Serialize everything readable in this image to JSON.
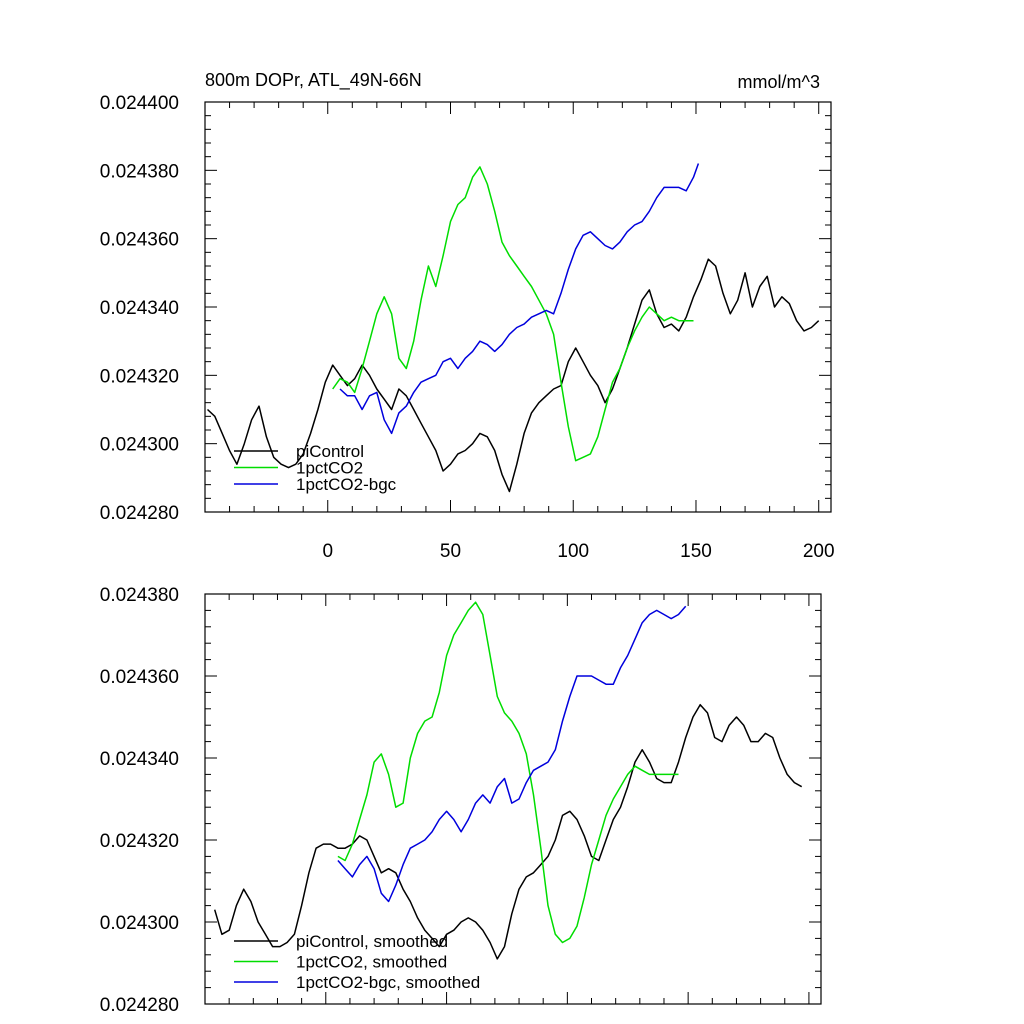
{
  "header": {
    "title": "800m DOPr, ATL_49N-66N",
    "units": "mmol/m^3"
  },
  "colors": {
    "piControl": "#000000",
    "1pctCO2": "#00dd00",
    "1pctCO2-bgc": "#0000dd"
  },
  "chart_data": [
    {
      "type": "line",
      "title": "800m DOPr, ATL_49N-66N",
      "units_label": "mmol/m^3",
      "xlim": [
        -50,
        205
      ],
      "ylim": [
        0.02428,
        0.0244
      ],
      "x_ticks": [
        0,
        50,
        100,
        150,
        200
      ],
      "x_tick_labels": [
        "0",
        "50",
        "100",
        "150",
        "200"
      ],
      "y_ticks": [
        0.02428,
        0.0243,
        0.02432,
        0.02434,
        0.02436,
        0.02438,
        0.0244
      ],
      "y_tick_labels": [
        "0.024280",
        "0.024300",
        "0.024320",
        "0.024340",
        "0.024360",
        "0.024380",
        "0.024400"
      ],
      "legend": {
        "placement": "bottom-left",
        "labels": [
          "piControl",
          "1pctCO2",
          "1pctCO2-bgc"
        ]
      },
      "series": [
        {
          "name": "piControl",
          "color": "#000000",
          "x": [
            -49,
            -46,
            -43,
            -40,
            -37,
            -34,
            -31,
            -28,
            -25,
            -22,
            -19,
            -16,
            -13,
            -10,
            -7,
            -4,
            -1,
            2,
            5,
            8,
            11,
            14,
            17,
            20,
            23,
            26,
            29,
            32,
            35,
            38,
            41,
            44,
            47,
            50,
            53,
            56,
            59,
            62,
            65,
            68,
            71,
            74,
            77,
            80,
            83,
            86,
            89,
            92,
            95,
            98,
            101,
            104,
            107,
            110,
            113,
            116,
            119,
            122,
            125,
            128,
            131,
            134,
            137,
            140,
            143,
            146,
            149,
            152,
            155,
            158,
            161,
            164,
            167,
            170,
            173,
            176,
            179,
            182,
            185,
            188,
            191,
            194,
            197,
            200
          ],
          "y": [
            0.02431,
            0.024308,
            0.024303,
            0.024298,
            0.024294,
            0.0243,
            0.024307,
            0.024311,
            0.024302,
            0.024296,
            0.024294,
            0.024293,
            0.024294,
            0.024297,
            0.024303,
            0.02431,
            0.024318,
            0.024323,
            0.02432,
            0.024317,
            0.024319,
            0.024323,
            0.02432,
            0.024316,
            0.024313,
            0.02431,
            0.024316,
            0.024314,
            0.02431,
            0.024306,
            0.024302,
            0.024298,
            0.024292,
            0.024294,
            0.024297,
            0.024298,
            0.0243,
            0.024303,
            0.024302,
            0.024298,
            0.024291,
            0.024286,
            0.024294,
            0.024303,
            0.024309,
            0.024312,
            0.024314,
            0.024316,
            0.024317,
            0.024324,
            0.024328,
            0.024324,
            0.02432,
            0.024317,
            0.024312,
            0.024316,
            0.024322,
            0.024328,
            0.024335,
            0.024342,
            0.024345,
            0.024338,
            0.024334,
            0.024335,
            0.024333,
            0.024337,
            0.024343,
            0.024348,
            0.024354,
            0.024352,
            0.024344,
            0.024338,
            0.024342,
            0.02435,
            0.02434,
            0.024346,
            0.024349,
            0.02434,
            0.024343,
            0.024341,
            0.024336,
            0.024333,
            0.024334,
            0.024336
          ]
        },
        {
          "name": "1pctCO2",
          "color": "#00dd00",
          "x": [
            2,
            5,
            8,
            11,
            14,
            17,
            20,
            23,
            26,
            29,
            32,
            35,
            38,
            41,
            44,
            47,
            50,
            53,
            56,
            59,
            62,
            65,
            68,
            71,
            74,
            77,
            80,
            83,
            86,
            89,
            92,
            95,
            98,
            101,
            104,
            107,
            110,
            113,
            116,
            119,
            122,
            125,
            128,
            131,
            134,
            137,
            140,
            143,
            146,
            149
          ],
          "y": [
            0.024316,
            0.024319,
            0.024318,
            0.024315,
            0.024322,
            0.02433,
            0.024338,
            0.024343,
            0.024338,
            0.024325,
            0.024322,
            0.02433,
            0.024342,
            0.024352,
            0.024346,
            0.024355,
            0.024365,
            0.02437,
            0.024372,
            0.024378,
            0.024381,
            0.024376,
            0.024368,
            0.024359,
            0.024355,
            0.024352,
            0.024349,
            0.024346,
            0.024342,
            0.024338,
            0.024332,
            0.024318,
            0.024305,
            0.024295,
            0.024296,
            0.024297,
            0.024302,
            0.02431,
            0.024318,
            0.024322,
            0.024328,
            0.024333,
            0.024337,
            0.02434,
            0.024338,
            0.024336,
            0.024337,
            0.024336,
            0.024336,
            0.024336
          ]
        },
        {
          "name": "1pctCO2-bgc",
          "color": "#0000dd",
          "x": [
            5,
            8,
            11,
            14,
            17,
            20,
            23,
            26,
            29,
            32,
            35,
            38,
            41,
            44,
            47,
            50,
            53,
            56,
            59,
            62,
            65,
            68,
            71,
            74,
            77,
            80,
            83,
            86,
            89,
            92,
            95,
            98,
            101,
            104,
            107,
            110,
            113,
            116,
            119,
            122,
            125,
            128,
            131,
            134,
            137,
            140,
            143,
            146,
            149,
            151
          ],
          "y": [
            0.024316,
            0.024314,
            0.024314,
            0.02431,
            0.024314,
            0.024315,
            0.024307,
            0.024303,
            0.024309,
            0.024311,
            0.024315,
            0.024318,
            0.024319,
            0.02432,
            0.024324,
            0.024325,
            0.024322,
            0.024325,
            0.024327,
            0.02433,
            0.024329,
            0.024327,
            0.024329,
            0.024332,
            0.024334,
            0.024335,
            0.024337,
            0.024338,
            0.024339,
            0.024338,
            0.024344,
            0.024351,
            0.024357,
            0.024361,
            0.024362,
            0.02436,
            0.024358,
            0.024357,
            0.024359,
            0.024362,
            0.024364,
            0.024365,
            0.024368,
            0.024372,
            0.024375,
            0.024375,
            0.024375,
            0.024374,
            0.024378,
            0.024382
          ]
        }
      ]
    },
    {
      "type": "line",
      "title": "",
      "xlim": [
        -50,
        205
      ],
      "ylim": [
        0.02428,
        0.02438
      ],
      "x_ticks": [
        0,
        50,
        100,
        150,
        200
      ],
      "y_ticks": [
        0.02428,
        0.0243,
        0.02432,
        0.02434,
        0.02436,
        0.02438
      ],
      "y_tick_labels": [
        "0.024280",
        "0.024300",
        "0.024320",
        "0.024340",
        "0.024360",
        "0.024380"
      ],
      "legend": {
        "placement": "bottom-left",
        "labels": [
          "piControl, smoothed",
          "1pctCO2, smoothed",
          "1pctCO2-bgc, smoothed"
        ]
      },
      "series": [
        {
          "name": "piControl, smoothed",
          "color": "#000000",
          "x": [
            -46,
            -43,
            -40,
            -37,
            -34,
            -31,
            -28,
            -25,
            -22,
            -19,
            -16,
            -13,
            -10,
            -7,
            -4,
            -1,
            2,
            5,
            8,
            11,
            14,
            17,
            20,
            23,
            26,
            29,
            32,
            35,
            38,
            41,
            44,
            47,
            50,
            53,
            56,
            59,
            62,
            65,
            68,
            71,
            74,
            77,
            80,
            83,
            86,
            89,
            92,
            95,
            98,
            101,
            104,
            107,
            110,
            113,
            116,
            119,
            122,
            125,
            128,
            131,
            134,
            137,
            140,
            143,
            146,
            149,
            152,
            155,
            158,
            161,
            164,
            167,
            170,
            173,
            176,
            179,
            182,
            185,
            188,
            191,
            194,
            197
          ],
          "y": [
            0.024303,
            0.024297,
            0.024298,
            0.024304,
            0.024308,
            0.024305,
            0.0243,
            0.024297,
            0.024294,
            0.024294,
            0.024295,
            0.024297,
            0.024304,
            0.024312,
            0.024318,
            0.024319,
            0.024319,
            0.024318,
            0.024318,
            0.024319,
            0.024321,
            0.02432,
            0.024316,
            0.024312,
            0.024313,
            0.024312,
            0.024308,
            0.024305,
            0.024301,
            0.024298,
            0.024296,
            0.024294,
            0.024297,
            0.024298,
            0.0243,
            0.024301,
            0.0243,
            0.024298,
            0.024295,
            0.024291,
            0.024294,
            0.024302,
            0.024308,
            0.024311,
            0.024312,
            0.024314,
            0.024316,
            0.02432,
            0.024326,
            0.024327,
            0.024325,
            0.024321,
            0.024316,
            0.024315,
            0.02432,
            0.024325,
            0.024328,
            0.024333,
            0.024339,
            0.024342,
            0.024339,
            0.024335,
            0.024334,
            0.024334,
            0.024339,
            0.024345,
            0.02435,
            0.024353,
            0.024351,
            0.024345,
            0.024344,
            0.024348,
            0.02435,
            0.024348,
            0.024344,
            0.024344,
            0.024346,
            0.024345,
            0.02434,
            0.024336,
            0.024334,
            0.024333
          ]
        },
        {
          "name": "1pctCO2, smoothed",
          "color": "#00dd00",
          "x": [
            5,
            8,
            11,
            14,
            17,
            20,
            23,
            26,
            29,
            32,
            35,
            38,
            41,
            44,
            47,
            50,
            53,
            56,
            59,
            62,
            65,
            68,
            71,
            74,
            77,
            80,
            83,
            86,
            89,
            92,
            95,
            98,
            101,
            104,
            107,
            110,
            113,
            116,
            119,
            122,
            125,
            128,
            131,
            134,
            137,
            140,
            143,
            146
          ],
          "y": [
            0.024316,
            0.024315,
            0.024319,
            0.024325,
            0.024331,
            0.024339,
            0.024341,
            0.024336,
            0.024328,
            0.024329,
            0.02434,
            0.024346,
            0.024349,
            0.02435,
            0.024356,
            0.024365,
            0.02437,
            0.024373,
            0.024376,
            0.024378,
            0.024375,
            0.024365,
            0.024355,
            0.024351,
            0.024349,
            0.024346,
            0.024341,
            0.024331,
            0.024318,
            0.024304,
            0.024297,
            0.024295,
            0.024296,
            0.024299,
            0.024306,
            0.024314,
            0.02432,
            0.024326,
            0.02433,
            0.024333,
            0.024336,
            0.024338,
            0.024337,
            0.024336,
            0.024336,
            0.024336,
            0.024336,
            0.024336
          ]
        },
        {
          "name": "1pctCO2-bgc, smoothed",
          "color": "#0000dd",
          "x": [
            5,
            8,
            11,
            14,
            17,
            20,
            23,
            26,
            29,
            32,
            35,
            38,
            41,
            44,
            47,
            50,
            53,
            56,
            59,
            62,
            65,
            68,
            71,
            74,
            77,
            80,
            83,
            86,
            89,
            92,
            95,
            98,
            101,
            104,
            107,
            110,
            113,
            116,
            119,
            122,
            125,
            128,
            131,
            134,
            137,
            140,
            143,
            146,
            149
          ],
          "y": [
            0.024315,
            0.024313,
            0.024311,
            0.024314,
            0.024316,
            0.024313,
            0.024307,
            0.024305,
            0.024309,
            0.024314,
            0.024318,
            0.024319,
            0.02432,
            0.024322,
            0.024325,
            0.024327,
            0.024325,
            0.024322,
            0.024325,
            0.024329,
            0.024331,
            0.024329,
            0.024333,
            0.024335,
            0.024329,
            0.02433,
            0.024334,
            0.024337,
            0.024338,
            0.024339,
            0.024342,
            0.024349,
            0.024355,
            0.02436,
            0.02436,
            0.02436,
            0.024359,
            0.024358,
            0.024358,
            0.024362,
            0.024365,
            0.024369,
            0.024373,
            0.024375,
            0.024376,
            0.024375,
            0.024374,
            0.024375,
            0.024377
          ]
        }
      ]
    }
  ]
}
